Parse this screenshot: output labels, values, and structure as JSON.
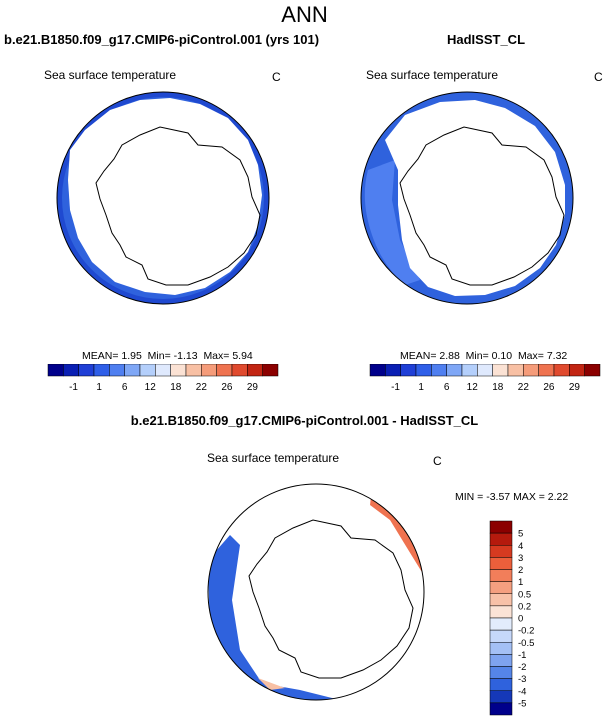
{
  "figure_title": "ANN",
  "panels": [
    {
      "case_name": "b.e21.B1850.f09_g17.CMIP6-piControl.001 (yrs 101)",
      "variable": "Sea surface temperature",
      "units": "C",
      "stats": {
        "mean_label": "MEAN=",
        "mean": "1.95",
        "min_label": "Min=",
        "min": "-1.13",
        "max_label": "Max=",
        "max": "5.94"
      }
    },
    {
      "case_name": "HadISST_CL",
      "variable": "Sea surface temperature",
      "units": "C",
      "stats": {
        "mean_label": "MEAN=",
        "mean": "2.88",
        "min_label": "Min=",
        "min": "0.10",
        "max_label": "Max=",
        "max": "7.32"
      }
    }
  ],
  "diff_panel": {
    "title": "b.e21.B1850.f09_g17.CMIP6-piControl.001 - HadISST_CL",
    "variable": "Sea surface temperature",
    "units": "C",
    "stats": "MIN = -3.57 MAX =  2.22"
  },
  "colorbar_main": {
    "labels": [
      "-1",
      "1",
      "6",
      "12",
      "18",
      "22",
      "26",
      "29"
    ],
    "colors": [
      "#00008b",
      "#0a1fb4",
      "#1f3fd6",
      "#2f5fe8",
      "#4f7ff0",
      "#7fa7f6",
      "#b4cffb",
      "#dfe9fd",
      "#fbe2d4",
      "#f8c0a4",
      "#f59c7a",
      "#ef7350",
      "#e04a2e",
      "#c22513",
      "#8b0000"
    ]
  },
  "colorbar_diff": {
    "labels": [
      "5",
      "4",
      "3",
      "2",
      "1",
      "0.5",
      "0.2",
      "0",
      "-0.2",
      "-0.5",
      "-1",
      "-2",
      "-3",
      "-4",
      "-5"
    ],
    "colors": [
      "#8b0000",
      "#b51a0d",
      "#d63a20",
      "#ec5f3b",
      "#f27e5a",
      "#f59f80",
      "#f8c1a8",
      "#fbe3d6",
      "#e2ecfc",
      "#c6d8fa",
      "#a4c0f5",
      "#7ea3ef",
      "#5585e8",
      "#2f62dd",
      "#1538b8",
      "#00008b"
    ]
  },
  "colors": {
    "ocean_main": "#2f62dd",
    "ocean_light": "#4f7ff0",
    "ocean_edge": "#1f49d0",
    "diff_warm": "#ef7350",
    "diff_pale_warm": "#f8c0a4"
  }
}
